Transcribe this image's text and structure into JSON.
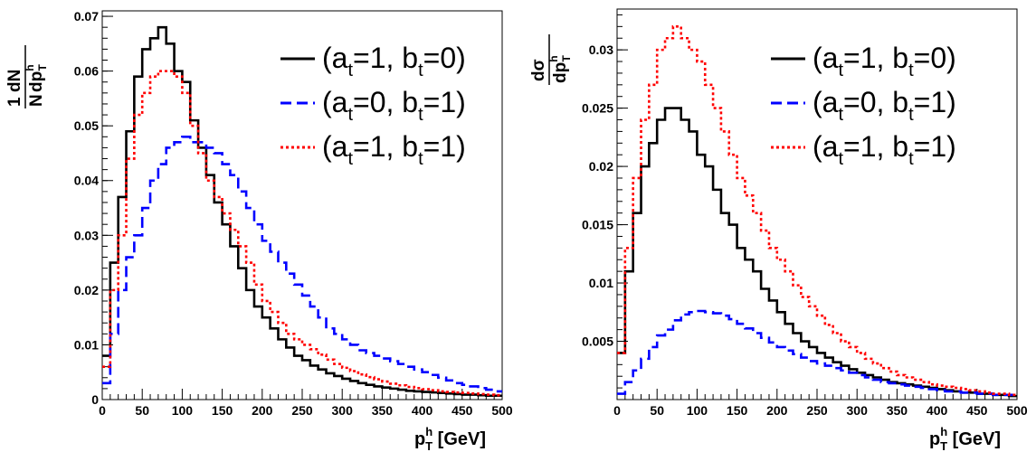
{
  "chart_data": [
    {
      "type": "line",
      "step": true,
      "xlim": [
        0,
        500
      ],
      "ylim": [
        0,
        0.071
      ],
      "xticks": [
        0,
        50,
        100,
        150,
        200,
        250,
        300,
        350,
        400,
        450,
        500
      ],
      "yticks": [
        0,
        0.01,
        0.02,
        0.03,
        0.04,
        0.05,
        0.06,
        0.07
      ],
      "ytick_labels": [
        "0",
        "0.01",
        "0.02",
        "0.03",
        "0.04",
        "0.05",
        "0.06",
        "0.07"
      ],
      "xlabel": {
        "main": "p",
        "sup": "h",
        "sub": "T",
        "rest": " [GeV]"
      },
      "ylabel": {
        "num_a": "1",
        "num_b": "dN",
        "den_a": "N",
        "den_b": "dp",
        "sup": "h",
        "sub": "T"
      },
      "legend": {
        "placement": "top-right",
        "entries": [
          {
            "t1": "(a",
            "s1": "t",
            "t2": "=1, b",
            "s2": "t",
            "t3": "=0)"
          },
          {
            "t1": "(a",
            "s1": "t",
            "t2": "=0, b",
            "s2": "t",
            "t3": "=1)"
          },
          {
            "t1": "(a",
            "s1": "t",
            "t2": "=1, b",
            "s2": "t",
            "t3": "=1)"
          }
        ]
      },
      "bin_edges_start": 0,
      "bin_width": 10,
      "series": [
        {
          "color": "#000000",
          "dash": "solid",
          "values": [
            0.008,
            0.025,
            0.037,
            0.049,
            0.059,
            0.064,
            0.066,
            0.068,
            0.065,
            0.06,
            0.058,
            0.051,
            0.046,
            0.041,
            0.036,
            0.032,
            0.028,
            0.024,
            0.02,
            0.017,
            0.015,
            0.013,
            0.011,
            0.0095,
            0.008,
            0.0072,
            0.0062,
            0.0055,
            0.0048,
            0.0043,
            0.0038,
            0.0034,
            0.003,
            0.0027,
            0.0024,
            0.0022,
            0.002,
            0.0018,
            0.0016,
            0.0015,
            0.0014,
            0.0013,
            0.0012,
            0.0011,
            0.001,
            0.0009,
            0.0009,
            0.0008,
            0.0007,
            0.0007
          ]
        },
        {
          "color": "#0000ff",
          "dash": "dashed",
          "values": [
            0.003,
            0.012,
            0.02,
            0.026,
            0.03,
            0.035,
            0.04,
            0.043,
            0.046,
            0.047,
            0.048,
            0.047,
            0.047,
            0.046,
            0.045,
            0.043,
            0.041,
            0.038,
            0.035,
            0.032,
            0.029,
            0.027,
            0.025,
            0.023,
            0.021,
            0.019,
            0.017,
            0.015,
            0.013,
            0.012,
            0.011,
            0.01,
            0.009,
            0.0085,
            0.008,
            0.0075,
            0.007,
            0.0065,
            0.006,
            0.0055,
            0.005,
            0.0045,
            0.004,
            0.0035,
            0.003,
            0.0027,
            0.0024,
            0.0021,
            0.0018,
            0.0015
          ]
        },
        {
          "color": "#ff0000",
          "dash": "dotted",
          "values": [
            0.006,
            0.02,
            0.03,
            0.044,
            0.052,
            0.056,
            0.059,
            0.06,
            0.06,
            0.059,
            0.056,
            0.05,
            0.045,
            0.04,
            0.037,
            0.034,
            0.031,
            0.028,
            0.025,
            0.021,
            0.018,
            0.016,
            0.014,
            0.012,
            0.011,
            0.01,
            0.0092,
            0.0082,
            0.0073,
            0.0065,
            0.0058,
            0.0052,
            0.0046,
            0.0041,
            0.0037,
            0.0033,
            0.0029,
            0.0026,
            0.0023,
            0.0021,
            0.0019,
            0.0017,
            0.0015,
            0.0014,
            0.0013,
            0.0012,
            0.0011,
            0.001,
            0.0009,
            0.0008
          ]
        }
      ]
    },
    {
      "type": "line",
      "step": true,
      "xlim": [
        0,
        500
      ],
      "ylim": [
        0,
        0.0335
      ],
      "xticks": [
        0,
        50,
        100,
        150,
        200,
        250,
        300,
        350,
        400,
        450,
        500
      ],
      "yticks": [
        0.005,
        0.01,
        0.015,
        0.02,
        0.025,
        0.03
      ],
      "ytick_labels": [
        "0.005",
        "0.01",
        "0.015",
        "0.02",
        "0.025",
        "0.03"
      ],
      "xlabel": {
        "main": "p",
        "sup": "h",
        "sub": "T",
        "rest": " [GeV]"
      },
      "ylabel": {
        "num_b": "dσ",
        "den_b": "dp",
        "sup": "h",
        "sub": "T"
      },
      "legend": {
        "placement": "top-right",
        "entries": [
          {
            "t1": "(a",
            "s1": "t",
            "t2": "=1, b",
            "s2": "t",
            "t3": "=0)"
          },
          {
            "t1": "(a",
            "s1": "t",
            "t2": "=0, b",
            "s2": "t",
            "t3": "=1)"
          },
          {
            "t1": "(a",
            "s1": "t",
            "t2": "=1, b",
            "s2": "t",
            "t3": "=1)"
          }
        ]
      },
      "bin_edges_start": 0,
      "bin_width": 10,
      "series": [
        {
          "color": "#000000",
          "dash": "solid",
          "values": [
            0.004,
            0.011,
            0.016,
            0.02,
            0.022,
            0.024,
            0.025,
            0.025,
            0.024,
            0.023,
            0.021,
            0.02,
            0.018,
            0.016,
            0.015,
            0.013,
            0.012,
            0.011,
            0.0095,
            0.0085,
            0.0075,
            0.0065,
            0.0057,
            0.005,
            0.0045,
            0.004,
            0.0036,
            0.0032,
            0.0029,
            0.0026,
            0.0023,
            0.0021,
            0.0019,
            0.0017,
            0.0015,
            0.0014,
            0.0013,
            0.0012,
            0.0011,
            0.001,
            0.0009,
            0.0008,
            0.0007,
            0.0006,
            0.0006,
            0.0005,
            0.0005,
            0.0004,
            0.0004,
            0.0003
          ]
        },
        {
          "color": "#0000ff",
          "dash": "dashed",
          "values": [
            0.0005,
            0.0015,
            0.0025,
            0.0035,
            0.0045,
            0.0055,
            0.006,
            0.0068,
            0.0073,
            0.0075,
            0.0076,
            0.0075,
            0.0074,
            0.0072,
            0.0069,
            0.0065,
            0.0061,
            0.0057,
            0.0053,
            0.0049,
            0.0045,
            0.0042,
            0.0039,
            0.0036,
            0.0033,
            0.0031,
            0.0029,
            0.0027,
            0.0025,
            0.0023,
            0.0021,
            0.0019,
            0.0017,
            0.0015,
            0.0014,
            0.0013,
            0.0012,
            0.0011,
            0.001,
            0.0009,
            0.0008,
            0.0007,
            0.0007,
            0.0006,
            0.0006,
            0.0005,
            0.0005,
            0.0004,
            0.0004,
            0.0004
          ]
        },
        {
          "color": "#ff0000",
          "dash": "dotted",
          "values": [
            0.004,
            0.013,
            0.019,
            0.024,
            0.027,
            0.03,
            0.031,
            0.032,
            0.031,
            0.03,
            0.029,
            0.027,
            0.025,
            0.023,
            0.021,
            0.019,
            0.0175,
            0.016,
            0.0145,
            0.013,
            0.012,
            0.011,
            0.0098,
            0.0088,
            0.008,
            0.0072,
            0.0064,
            0.0057,
            0.005,
            0.0045,
            0.004,
            0.0035,
            0.0031,
            0.0027,
            0.0024,
            0.0021,
            0.0019,
            0.0017,
            0.0015,
            0.0013,
            0.0012,
            0.0011,
            0.001,
            0.0009,
            0.0008,
            0.0007,
            0.0006,
            0.0005,
            0.0005,
            0.0004
          ]
        }
      ]
    }
  ]
}
